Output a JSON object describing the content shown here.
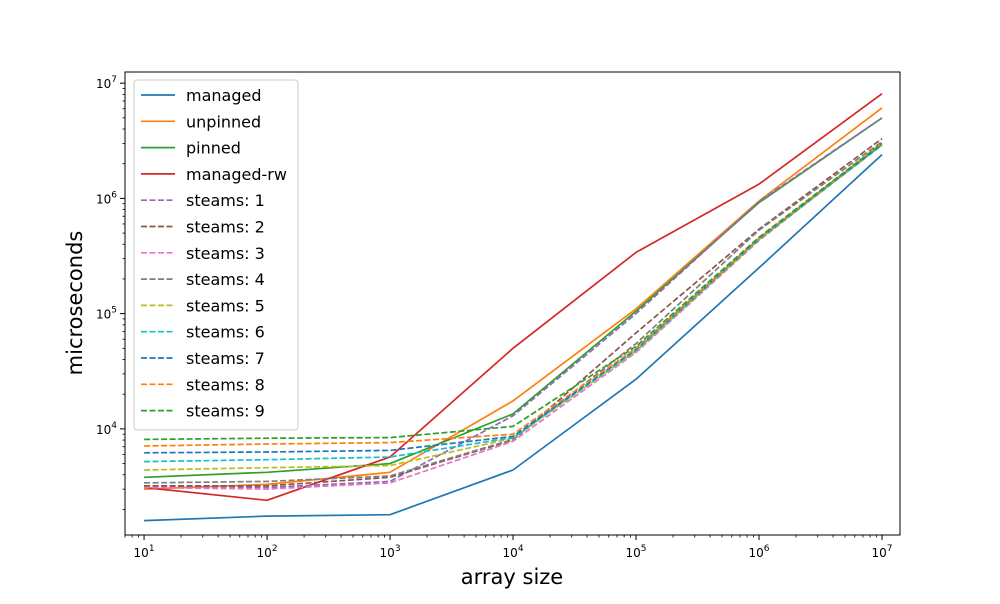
{
  "chart_data": {
    "type": "line",
    "title": "",
    "xlabel": "array size",
    "ylabel": "microseconds",
    "xscale": "log",
    "yscale": "log",
    "xlim": [
      7,
      14000000
    ],
    "ylim": [
      1200,
      12500000
    ],
    "grid": false,
    "legend_position": "upper-left",
    "x_ticks": [
      {
        "value": 10,
        "base": "10",
        "exp": "1"
      },
      {
        "value": 100,
        "base": "10",
        "exp": "2"
      },
      {
        "value": 1000,
        "base": "10",
        "exp": "3"
      },
      {
        "value": 10000,
        "base": "10",
        "exp": "4"
      },
      {
        "value": 100000,
        "base": "10",
        "exp": "5"
      },
      {
        "value": 1000000,
        "base": "10",
        "exp": "6"
      },
      {
        "value": 10000000,
        "base": "10",
        "exp": "7"
      }
    ],
    "y_ticks": [
      {
        "value": 10000,
        "base": "10",
        "exp": "4"
      },
      {
        "value": 100000,
        "base": "10",
        "exp": "5"
      },
      {
        "value": 1000000,
        "base": "10",
        "exp": "6"
      },
      {
        "value": 10000000,
        "base": "10",
        "exp": "7"
      }
    ],
    "x": [
      10,
      100,
      1000,
      10000,
      100000,
      1000000,
      10000000
    ],
    "series": [
      {
        "name": "managed",
        "style": "solid",
        "color": "#1f77b4",
        "values": [
          1600,
          1750,
          1800,
          4400,
          27000,
          250000,
          2400000
        ]
      },
      {
        "name": "unpinned",
        "style": "solid",
        "color": "#ff7f0e",
        "values": [
          3000,
          3300,
          4200,
          17500,
          110000,
          950000,
          6100000
        ]
      },
      {
        "name": "pinned",
        "style": "solid",
        "color": "#2ca02c",
        "values": [
          3800,
          4200,
          5000,
          13500,
          105000,
          920000,
          5000000
        ]
      },
      {
        "name": "managed-rw",
        "style": "solid",
        "color": "#d62728",
        "values": [
          3100,
          2400,
          5700,
          50000,
          340000,
          1330000,
          8100000
        ]
      },
      {
        "name": "steams: 1",
        "style": "dashed",
        "color": "#9467bd",
        "values": [
          3200,
          3100,
          3500,
          13000,
          100000,
          940000,
          5000000
        ]
      },
      {
        "name": "steams: 2",
        "style": "dashed",
        "color": "#8c564b",
        "values": [
          3200,
          3200,
          3800,
          8000,
          68000,
          540000,
          3300000
        ]
      },
      {
        "name": "steams: 3",
        "style": "dashed",
        "color": "#e377c2",
        "values": [
          3100,
          3000,
          3400,
          7800,
          46000,
          430000,
          3000000
        ]
      },
      {
        "name": "steams: 4",
        "style": "dashed",
        "color": "#7f7f7f",
        "values": [
          3400,
          3500,
          3900,
          8100,
          55000,
          530000,
          3100000
        ]
      },
      {
        "name": "steams: 5",
        "style": "dashed",
        "color": "#bcbd22",
        "values": [
          4400,
          4600,
          4800,
          8300,
          47000,
          440000,
          2900000
        ]
      },
      {
        "name": "steams: 6",
        "style": "dashed",
        "color": "#17becf",
        "values": [
          5200,
          5400,
          5700,
          8400,
          48000,
          440000,
          2900000
        ]
      },
      {
        "name": "steams: 7",
        "style": "dashed",
        "color": "#1f77b4",
        "values": [
          6200,
          6300,
          6500,
          8600,
          49000,
          450000,
          2950000
        ]
      },
      {
        "name": "steams: 8",
        "style": "dashed",
        "color": "#ff7f0e",
        "values": [
          7100,
          7400,
          7600,
          9000,
          50000,
          450000,
          3000000
        ]
      },
      {
        "name": "steams: 9",
        "style": "dashed",
        "color": "#2ca02c",
        "values": [
          8100,
          8300,
          8400,
          10500,
          52000,
          460000,
          3000000
        ]
      }
    ]
  }
}
